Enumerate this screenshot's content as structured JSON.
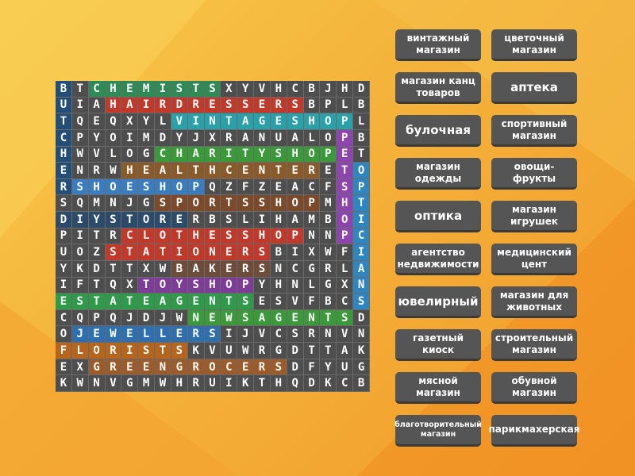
{
  "grid": {
    "rows": [
      [
        "B",
        "T",
        "C",
        "H",
        "E",
        "M",
        "I",
        "S",
        "T",
        "S",
        "X",
        "Y",
        "V",
        "H",
        "C",
        "B",
        "J",
        "H",
        "D"
      ],
      [
        "U",
        "I",
        "A",
        "H",
        "A",
        "I",
        "R",
        "D",
        "R",
        "E",
        "S",
        "S",
        "E",
        "R",
        "S",
        "B",
        "P",
        "L",
        "B"
      ],
      [
        "T",
        "Q",
        "E",
        "Q",
        "X",
        "Y",
        "L",
        "V",
        "I",
        "N",
        "T",
        "A",
        "G",
        "E",
        "S",
        "H",
        "O",
        "P",
        "L"
      ],
      [
        "C",
        "P",
        "Y",
        "O",
        "I",
        "M",
        "D",
        "Y",
        "J",
        "X",
        "R",
        "A",
        "N",
        "U",
        "A",
        "L",
        "O",
        "P",
        "B"
      ],
      [
        "H",
        "W",
        "V",
        "L",
        "O",
        "G",
        "C",
        "H",
        "A",
        "R",
        "I",
        "T",
        "Y",
        "S",
        "H",
        "O",
        "P",
        "E",
        "T"
      ],
      [
        "E",
        "N",
        "R",
        "W",
        "H",
        "E",
        "A",
        "L",
        "T",
        "H",
        "C",
        "E",
        "N",
        "T",
        "E",
        "R",
        "E",
        "T",
        "O"
      ],
      [
        "R",
        "S",
        "H",
        "O",
        "E",
        "S",
        "H",
        "O",
        "P",
        "Q",
        "Z",
        "F",
        "Z",
        "E",
        "A",
        "C",
        "F",
        "S",
        "P"
      ],
      [
        "S",
        "Q",
        "M",
        "N",
        "J",
        "G",
        "S",
        "P",
        "O",
        "R",
        "T",
        "S",
        "S",
        "H",
        "O",
        "P",
        "M",
        "H",
        "T"
      ],
      [
        "D",
        "I",
        "Y",
        "S",
        "T",
        "O",
        "R",
        "E",
        "R",
        "B",
        "S",
        "L",
        "I",
        "H",
        "A",
        "M",
        "B",
        "O",
        "I"
      ],
      [
        "P",
        "I",
        "T",
        "R",
        "C",
        "L",
        "O",
        "T",
        "H",
        "E",
        "S",
        "S",
        "H",
        "O",
        "P",
        "N",
        "N",
        "P",
        "C"
      ],
      [
        "U",
        "O",
        "Z",
        "S",
        "T",
        "A",
        "T",
        "I",
        "O",
        "N",
        "E",
        "R",
        "S",
        "B",
        "I",
        "X",
        "W",
        "F",
        "I"
      ],
      [
        "Y",
        "K",
        "D",
        "T",
        "T",
        "X",
        "W",
        "B",
        "A",
        "K",
        "E",
        "R",
        "S",
        "N",
        "C",
        "G",
        "R",
        "L",
        "A"
      ],
      [
        "I",
        "F",
        "T",
        "Q",
        "X",
        "T",
        "O",
        "Y",
        "S",
        "H",
        "O",
        "P",
        "Y",
        "H",
        "N",
        "L",
        "G",
        "X",
        "N"
      ],
      [
        "E",
        "S",
        "T",
        "A",
        "T",
        "E",
        "A",
        "G",
        "E",
        "N",
        "T",
        "S",
        "E",
        "S",
        "V",
        "F",
        "B",
        "C",
        "S"
      ],
      [
        "C",
        "Q",
        "P",
        "Q",
        "J",
        "D",
        "J",
        "W",
        "N",
        "E",
        "W",
        "S",
        "A",
        "G",
        "E",
        "N",
        "T",
        "S",
        "D"
      ],
      [
        "O",
        "J",
        "E",
        "W",
        "E",
        "L",
        "L",
        "E",
        "R",
        "S",
        "I",
        "J",
        "V",
        "C",
        "S",
        "R",
        "N",
        "V",
        "N"
      ],
      [
        "F",
        "L",
        "O",
        "R",
        "I",
        "S",
        "T",
        "S",
        "K",
        "V",
        "U",
        "W",
        "R",
        "G",
        "D",
        "T",
        "T",
        "A",
        "K"
      ],
      [
        "E",
        "X",
        "G",
        "R",
        "E",
        "E",
        "N",
        "G",
        "R",
        "O",
        "C",
        "E",
        "R",
        "S",
        "D",
        "F",
        "Y",
        "U",
        "G"
      ],
      [
        "K",
        "W",
        "N",
        "V",
        "G",
        "M",
        "W",
        "H",
        "R",
        "U",
        "I",
        "K",
        "T",
        "H",
        "Q",
        "D",
        "K",
        "C",
        "B"
      ]
    ]
  },
  "words": [
    "винтажный магазин",
    "цветочный магазин",
    "магазин канц товаров",
    "аптека",
    "булочная",
    "спортивный магазин",
    "магазин одежды",
    "овощи-фрукты",
    "оптика",
    "магазин игрушек",
    "агентство недвижимости",
    "медицинский цент",
    "ювелирный",
    "магазин для животных",
    "газетный киоск",
    "строительный магазин",
    "мясной магазин",
    "обувной магазин",
    "благотворительный магазин",
    "парикмахерская"
  ]
}
